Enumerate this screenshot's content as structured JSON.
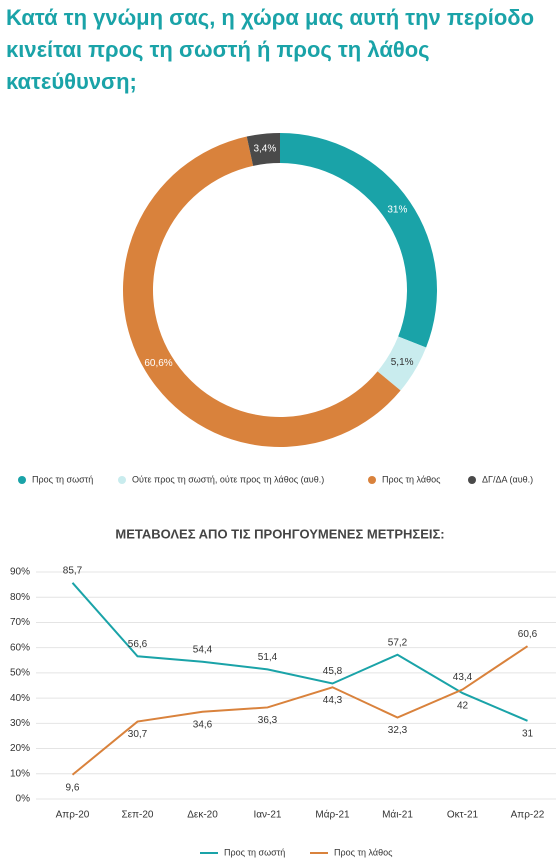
{
  "chart_data": [
    {
      "type": "pie",
      "title": "Κατά τη γνώμη σας, η χώρα μας αυτή την περίοδο κινείται προς τη σωστή ή προς τη λάθος κατεύθυνση;",
      "categories": [
        "Προς τη σωστή",
        "Ούτε προς τη σωστή, ούτε προς τη λάθος (αυθ.)",
        "Προς τη λάθος",
        "ΔΓ/ΔΑ (αυθ.)"
      ],
      "values": [
        31,
        5.1,
        60.6,
        3.4
      ],
      "value_labels": [
        "31%",
        "5,1%",
        "60,6%",
        "3,4%"
      ],
      "colors": [
        "#1aa3a8",
        "#c9ecee",
        "#d9823c",
        "#4a4a4a"
      ]
    },
    {
      "type": "line",
      "title": "ΜΕΤΑΒΟΛΕΣ ΑΠΟ ΤΙΣ ΠΡΟΗΓΟΥΜΕΝΕΣ ΜΕΤΡΗΣΕΙΣ:",
      "categories": [
        "Απρ-20",
        "Σεπ-20",
        "Δεκ-20",
        "Ιαν-21",
        "Μάρ-21",
        "Μάι-21",
        "Οκτ-21",
        "Απρ-22"
      ],
      "series": [
        {
          "name": "Προς τη σωστή",
          "color": "#1aa3a8",
          "values": [
            85.7,
            56.6,
            54.4,
            51.4,
            45.8,
            57.2,
            42,
            31
          ],
          "value_labels": [
            "85,7",
            "56,6",
            "54,4",
            "51,4",
            "45,8",
            "57,2",
            "42",
            "31"
          ]
        },
        {
          "name": "Προς τη λάθος",
          "color": "#d9823c",
          "values": [
            9.6,
            30.7,
            34.6,
            36.3,
            44.3,
            32.3,
            43.4,
            60.6
          ],
          "value_labels": [
            "9,6",
            "30,7",
            "34,6",
            "36,3",
            "44,3",
            "32,3",
            "43,4",
            "60,6"
          ]
        }
      ],
      "ylim": [
        0,
        90
      ],
      "yticks": [
        {
          "value": 0,
          "label": "0%"
        },
        {
          "value": 10,
          "label": "10%"
        },
        {
          "value": 20,
          "label": "20%"
        },
        {
          "value": 30,
          "label": "30%"
        },
        {
          "value": 40,
          "label": "40%"
        },
        {
          "value": 50,
          "label": "50%"
        },
        {
          "value": 60,
          "label": "60%"
        },
        {
          "value": 70,
          "label": "70%"
        },
        {
          "value": 80,
          "label": "80%"
        },
        {
          "value": 90,
          "label": "90%"
        }
      ],
      "grid": true
    }
  ]
}
